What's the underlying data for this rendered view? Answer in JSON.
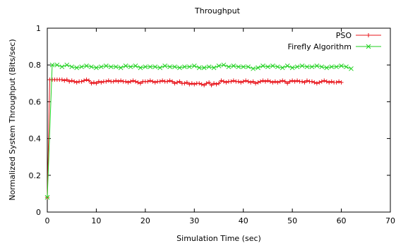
{
  "chart_data": {
    "type": "line",
    "title": "Throughput",
    "xlabel": "Simulation Time (sec)",
    "ylabel": "Normalized System Throughput (Bits/sec)",
    "xlim": [
      0,
      70
    ],
    "ylim": [
      0,
      1
    ],
    "xticks": [
      "0",
      "10",
      "20",
      "30",
      "40",
      "50",
      "60",
      "70"
    ],
    "yticks": [
      "0",
      "0.2",
      "0.4",
      "0.6",
      "0.8",
      "1"
    ],
    "grid": false,
    "legend_position": "top-right",
    "series": [
      {
        "name": "PSO",
        "color": "#e8141b",
        "marker": "plus",
        "x": [
          0,
          0.5,
          1,
          1.5,
          2,
          2.5,
          3,
          3.5,
          4,
          4.5,
          5,
          5.5,
          6,
          6.5,
          7,
          7.5,
          8,
          8.5,
          9,
          9.5,
          10,
          10.5,
          11,
          11.5,
          12,
          12.5,
          13,
          13.5,
          14,
          14.5,
          15,
          15.5,
          16,
          16.5,
          17,
          17.5,
          18,
          18.5,
          19,
          19.5,
          20,
          20.5,
          21,
          21.5,
          22,
          22.5,
          23,
          23.5,
          24,
          24.5,
          25,
          25.5,
          26,
          26.5,
          27,
          27.5,
          28,
          28.5,
          29,
          29.5,
          30,
          30.5,
          31,
          31.5,
          32,
          32.5,
          33,
          33.5,
          34,
          34.5,
          35,
          35.5,
          36,
          36.5,
          37,
          37.5,
          38,
          38.5,
          39,
          39.5,
          40,
          40.5,
          41,
          41.5,
          42,
          42.5,
          43,
          43.5,
          44,
          44.5,
          45,
          45.5,
          46,
          46.5,
          47,
          47.5,
          48,
          48.5,
          49,
          49.5,
          50,
          50.5,
          51,
          51.5,
          52,
          52.5,
          53,
          53.5,
          54,
          54.5,
          55,
          55.5,
          56,
          56.5,
          57,
          57.5,
          58,
          58.5,
          59,
          59.5,
          60
        ],
        "y": [
          0.08,
          0.72,
          0.72,
          0.72,
          0.72,
          0.72,
          0.72,
          0.715,
          0.72,
          0.71,
          0.715,
          0.71,
          0.705,
          0.71,
          0.71,
          0.715,
          0.72,
          0.715,
          0.7,
          0.705,
          0.7,
          0.71,
          0.705,
          0.71,
          0.71,
          0.715,
          0.71,
          0.71,
          0.715,
          0.71,
          0.715,
          0.71,
          0.71,
          0.705,
          0.71,
          0.715,
          0.71,
          0.705,
          0.7,
          0.71,
          0.71,
          0.71,
          0.715,
          0.71,
          0.705,
          0.71,
          0.71,
          0.715,
          0.71,
          0.71,
          0.715,
          0.71,
          0.7,
          0.705,
          0.71,
          0.7,
          0.7,
          0.705,
          0.695,
          0.7,
          0.695,
          0.7,
          0.7,
          0.695,
          0.69,
          0.7,
          0.705,
          0.69,
          0.7,
          0.695,
          0.7,
          0.715,
          0.71,
          0.705,
          0.71,
          0.71,
          0.715,
          0.71,
          0.71,
          0.705,
          0.71,
          0.715,
          0.71,
          0.705,
          0.71,
          0.7,
          0.705,
          0.71,
          0.715,
          0.71,
          0.715,
          0.71,
          0.705,
          0.71,
          0.705,
          0.71,
          0.715,
          0.71,
          0.7,
          0.71,
          0.715,
          0.71,
          0.715,
          0.71,
          0.71,
          0.705,
          0.715,
          0.71,
          0.71,
          0.705,
          0.7,
          0.705,
          0.71,
          0.715,
          0.71,
          0.705,
          0.71,
          0.705,
          0.705,
          0.71,
          0.705
        ]
      },
      {
        "name": "Firefly Algorithm",
        "color": "#1fd11f",
        "marker": "cross",
        "x": [
          0,
          1,
          2,
          3,
          4,
          5,
          6,
          7,
          8,
          9,
          10,
          11,
          12,
          13,
          14,
          15,
          16,
          17,
          18,
          19,
          20,
          21,
          22,
          23,
          24,
          25,
          26,
          27,
          28,
          29,
          30,
          31,
          32,
          33,
          34,
          35,
          36,
          37,
          38,
          39,
          40,
          41,
          42,
          43,
          44,
          45,
          46,
          47,
          48,
          49,
          50,
          51,
          52,
          53,
          54,
          55,
          56,
          57,
          58,
          59,
          60,
          61,
          62
        ],
        "y": [
          0.08,
          0.8,
          0.8,
          0.79,
          0.8,
          0.79,
          0.785,
          0.79,
          0.795,
          0.79,
          0.785,
          0.79,
          0.795,
          0.79,
          0.79,
          0.785,
          0.795,
          0.79,
          0.795,
          0.785,
          0.79,
          0.79,
          0.79,
          0.785,
          0.795,
          0.79,
          0.79,
          0.785,
          0.79,
          0.79,
          0.795,
          0.785,
          0.785,
          0.79,
          0.785,
          0.795,
          0.8,
          0.79,
          0.795,
          0.79,
          0.79,
          0.79,
          0.78,
          0.785,
          0.795,
          0.79,
          0.795,
          0.79,
          0.785,
          0.795,
          0.785,
          0.79,
          0.795,
          0.79,
          0.79,
          0.795,
          0.79,
          0.785,
          0.79,
          0.79,
          0.795,
          0.79,
          0.78
        ]
      }
    ]
  }
}
